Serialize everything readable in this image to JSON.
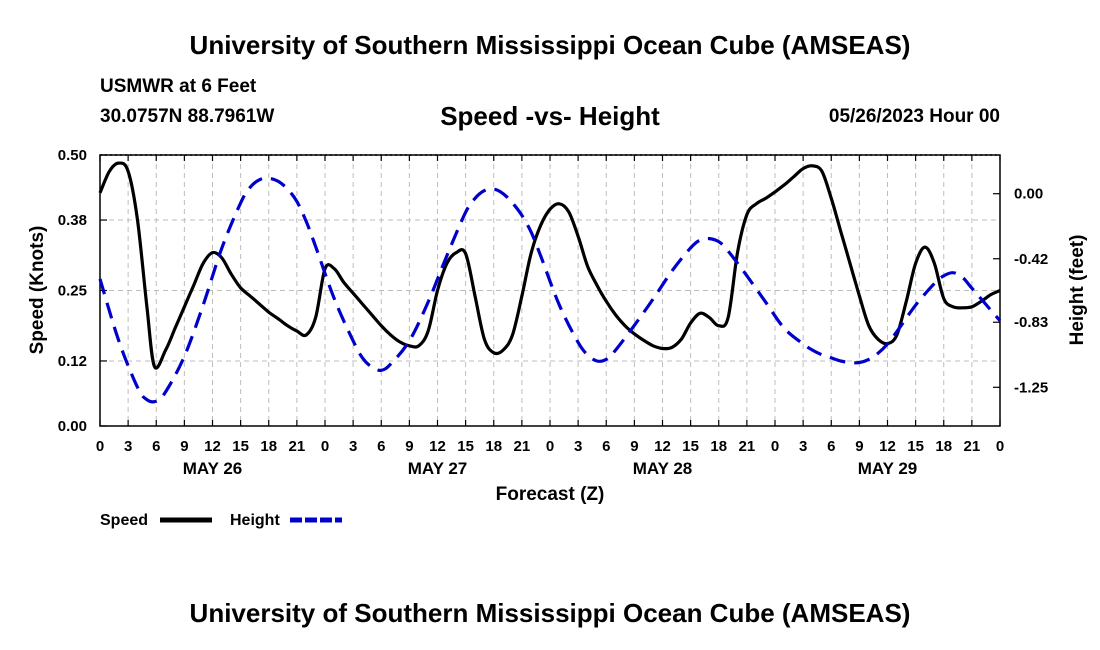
{
  "page": {
    "title_top": "University of Southern Mississippi Ocean Cube (AMSEAS)",
    "title_bottom": "University of Southern Mississippi Ocean Cube (AMSEAS)",
    "station": "USMWR at 6 Feet",
    "coords": "30.0757N  88.7961W",
    "subtitle": "Speed -vs- Height",
    "datestamp": "05/26/2023 Hour 00"
  },
  "chart_data": {
    "type": "line",
    "title": "Speed -vs- Height",
    "xlabel": "Forecast (Z)",
    "ylabel": "Speed (Knots)",
    "y2label": "Height (feet)",
    "xlim": [
      0,
      96
    ],
    "ylim": [
      0,
      0.5
    ],
    "y2lim": [
      -1.5,
      0.25
    ],
    "yticks": [
      0,
      0.12,
      0.25,
      0.38,
      0.5
    ],
    "ytick_labels": [
      "0.00",
      "0.12",
      "0.25",
      "0.38",
      "0.50"
    ],
    "y2ticks": [
      0,
      -0.42,
      -0.83,
      -1.25
    ],
    "y2tick_labels": [
      "0.00",
      "-0.42",
      "-0.83",
      "-1.25"
    ],
    "xtick_values": [
      0,
      3,
      6,
      9,
      12,
      15,
      18,
      21,
      24,
      27,
      30,
      33,
      36,
      39,
      42,
      45,
      48,
      51,
      54,
      57,
      60,
      63,
      66,
      69,
      72,
      75,
      78,
      81,
      84,
      87,
      90,
      93,
      96
    ],
    "xtick_labels": [
      "0",
      "3",
      "6",
      "9",
      "12",
      "15",
      "18",
      "21",
      "0",
      "3",
      "6",
      "9",
      "12",
      "15",
      "18",
      "21",
      "0",
      "3",
      "6",
      "9",
      "12",
      "15",
      "18",
      "21",
      "0",
      "3",
      "6",
      "9",
      "12",
      "15",
      "18",
      "21",
      "0"
    ],
    "day_labels": [
      {
        "x": 12,
        "label": "MAY 26"
      },
      {
        "x": 36,
        "label": "MAY 27"
      },
      {
        "x": 60,
        "label": "MAY 28"
      },
      {
        "x": 84,
        "label": "MAY 29"
      }
    ],
    "grid": true,
    "legend_position": "bottom-left",
    "series": [
      {
        "name": "Speed",
        "axis": "left",
        "color": "#000000",
        "style": "solid",
        "x": [
          0,
          1,
          2,
          3,
          4,
          5,
          5.8,
          7,
          8,
          9,
          10,
          11,
          12,
          13,
          14,
          15,
          16,
          17,
          18,
          19,
          20,
          21,
          22,
          23,
          24,
          25,
          26,
          27,
          28,
          29,
          30,
          31,
          32,
          33,
          34,
          35,
          36,
          37,
          38,
          39,
          40,
          41,
          42,
          43,
          44,
          45,
          46,
          47,
          48,
          49,
          50,
          51,
          52,
          53,
          54,
          55,
          56,
          57,
          58,
          59,
          60,
          61,
          62,
          63,
          64,
          65,
          66,
          67,
          68,
          69,
          70,
          71,
          72,
          73,
          74,
          75,
          76,
          77,
          78,
          79,
          80,
          81,
          82,
          83,
          84,
          85,
          86,
          87,
          88,
          89,
          90,
          91,
          92,
          93,
          94,
          95,
          96
        ],
        "values": [
          0.43,
          0.47,
          0.485,
          0.47,
          0.38,
          0.22,
          0.11,
          0.14,
          0.18,
          0.22,
          0.26,
          0.3,
          0.32,
          0.31,
          0.28,
          0.255,
          0.24,
          0.225,
          0.21,
          0.198,
          0.185,
          0.175,
          0.168,
          0.2,
          0.29,
          0.29,
          0.265,
          0.245,
          0.225,
          0.205,
          0.185,
          0.168,
          0.155,
          0.148,
          0.148,
          0.175,
          0.25,
          0.3,
          0.32,
          0.318,
          0.24,
          0.16,
          0.135,
          0.14,
          0.168,
          0.24,
          0.32,
          0.37,
          0.4,
          0.41,
          0.395,
          0.35,
          0.295,
          0.26,
          0.23,
          0.205,
          0.185,
          0.17,
          0.158,
          0.148,
          0.143,
          0.145,
          0.16,
          0.19,
          0.208,
          0.2,
          0.185,
          0.2,
          0.32,
          0.39,
          0.41,
          0.42,
          0.432,
          0.445,
          0.46,
          0.475,
          0.48,
          0.47,
          0.42,
          0.36,
          0.3,
          0.24,
          0.185,
          0.16,
          0.152,
          0.168,
          0.23,
          0.3,
          0.33,
          0.3,
          0.235,
          0.22,
          0.218,
          0.22,
          0.23,
          0.242,
          0.25
        ]
      },
      {
        "name": "Height",
        "axis": "right",
        "color": "#0000cc",
        "style": "dashed",
        "x": [
          0,
          2,
          4,
          5,
          6,
          7,
          9,
          11,
          13,
          15,
          16,
          17,
          18,
          19,
          20,
          21,
          22,
          23,
          25,
          27,
          28,
          29,
          30,
          31,
          33,
          35,
          37,
          39,
          40,
          41,
          42,
          43,
          44,
          45,
          46,
          47,
          49,
          51,
          52,
          53,
          54,
          55,
          57,
          59,
          61,
          63,
          64,
          65,
          66,
          67,
          69,
          71,
          73,
          75,
          76,
          77,
          78,
          79,
          80,
          81,
          82,
          83,
          84,
          85,
          87,
          89,
          90,
          91,
          92,
          93,
          95,
          96
        ],
        "values": [
          -0.55,
          -0.95,
          -1.25,
          -1.33,
          -1.34,
          -1.28,
          -1.05,
          -0.72,
          -0.35,
          -0.06,
          0.04,
          0.09,
          0.1,
          0.08,
          0.03,
          -0.05,
          -0.18,
          -0.34,
          -0.68,
          -0.95,
          -1.06,
          -1.12,
          -1.14,
          -1.1,
          -0.95,
          -0.7,
          -0.4,
          -0.12,
          -0.03,
          0.02,
          0.03,
          0.0,
          -0.06,
          -0.14,
          -0.25,
          -0.4,
          -0.72,
          -0.96,
          -1.04,
          -1.08,
          -1.07,
          -1.01,
          -0.85,
          -0.68,
          -0.5,
          -0.35,
          -0.3,
          -0.29,
          -0.31,
          -0.37,
          -0.53,
          -0.7,
          -0.87,
          -0.97,
          -1.01,
          -1.04,
          -1.06,
          -1.08,
          -1.09,
          -1.09,
          -1.07,
          -1.03,
          -0.97,
          -0.89,
          -0.72,
          -0.58,
          -0.53,
          -0.51,
          -0.54,
          -0.61,
          -0.75,
          -0.82
        ]
      }
    ]
  }
}
